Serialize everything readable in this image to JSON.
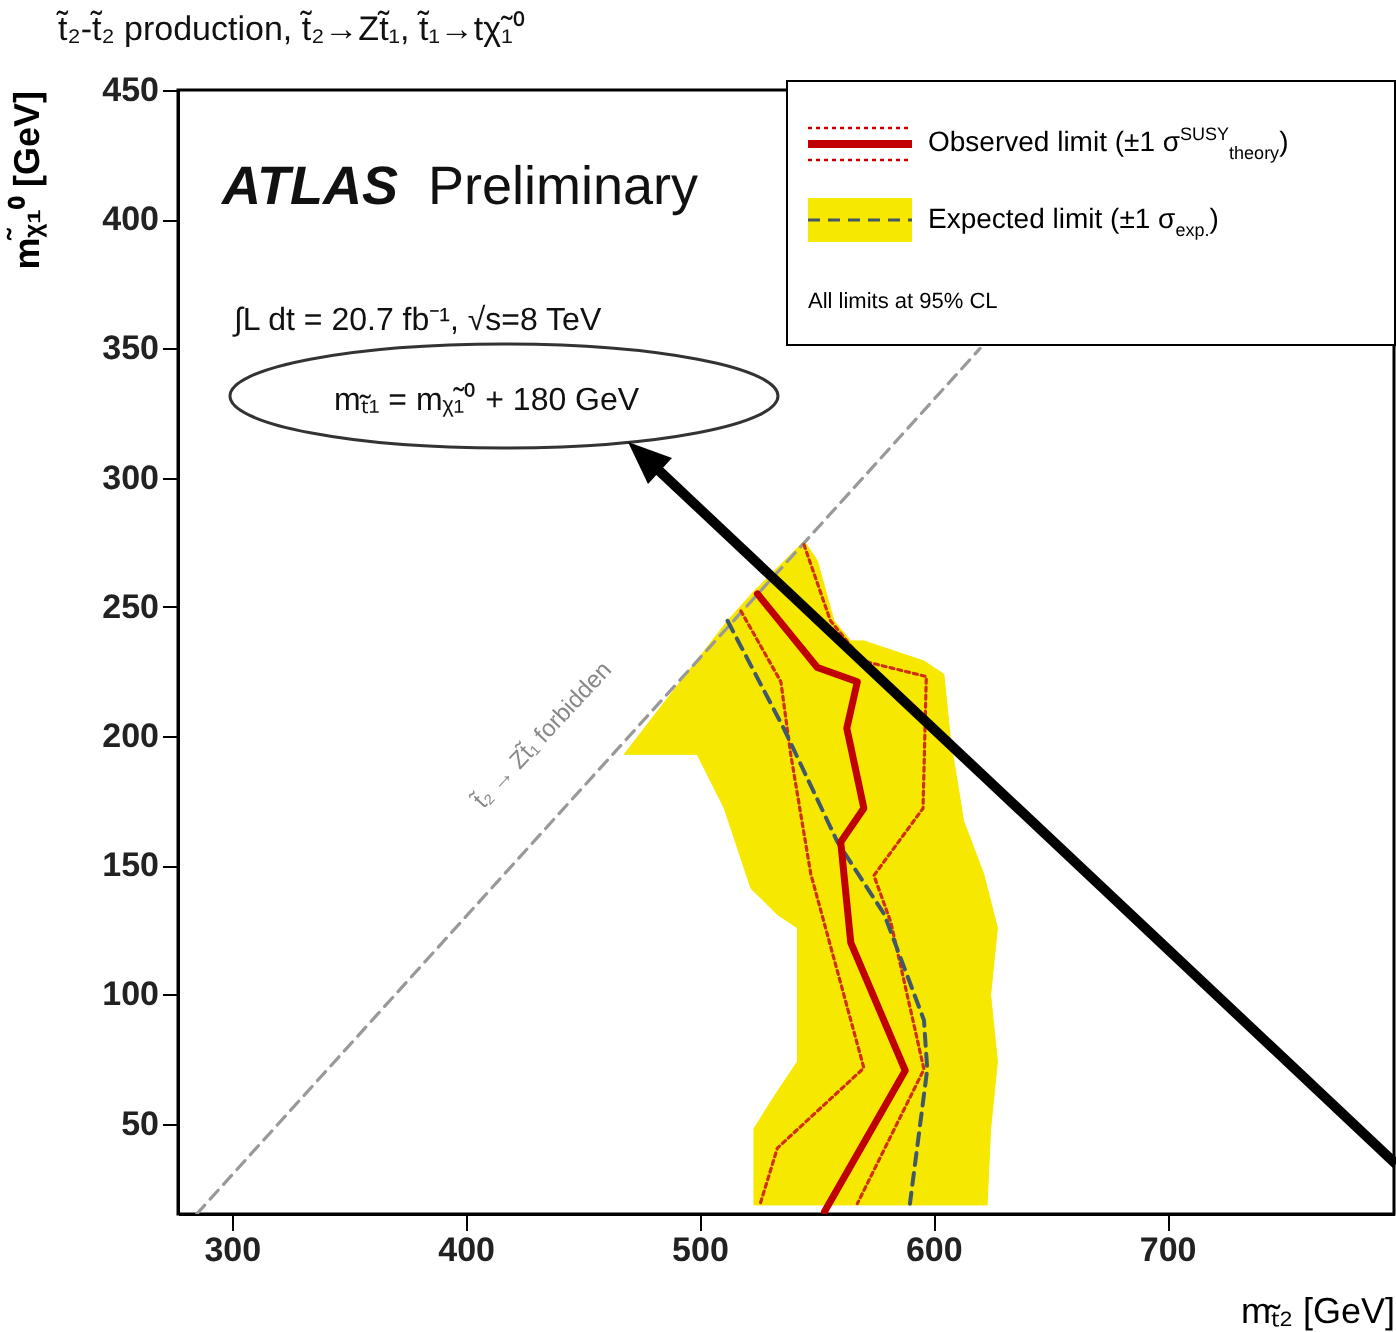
{
  "chart_data": {
    "type": "line",
    "title": "t̃₂-t̃₂ production, t̃₂→Zt̃₁, t̃₁→tχ̃₁⁰",
    "xlabel": "mₜ̃₂ [GeV]",
    "ylabel": "mᵪ̃₁⁰ [GeV]",
    "xlim": [
      277,
      797
    ],
    "ylim": [
      15,
      450
    ],
    "xticks": [
      300,
      400,
      500,
      600,
      700
    ],
    "yticks": [
      50,
      100,
      150,
      200,
      250,
      300,
      350,
      400,
      450
    ],
    "legend": "top right",
    "annotations": [
      "ATLAS",
      "Preliminary",
      "∫L dt = 20.7 fb⁻¹, √s=8 TeV",
      "mₜ̃₁ = mᵪ̃₁⁰ + 180 GeV",
      "t̃₂ → Zt̃₁ forbidden",
      "All limits at 95% CL"
    ],
    "series": [
      {
        "type": "area",
        "color": "#f7e800",
        "x": [
          544.7,
          550.4,
          557.5,
          564.7,
          570.4,
          596,
          604.5,
          607.4,
          613,
          621.6,
          627.4,
          624.5,
          627.4,
          624.5,
          623,
          523.3,
          523.3,
          530.5,
          541.9,
          541.9,
          533.3,
          522,
          516.2,
          510.5,
          499,
          467.8,
          512,
          524.8
        ],
        "values": [
          275.6,
          267.8,
          244.6,
          236.8,
          236.8,
          229,
          223.9,
          198,
          167,
          146.4,
          125.7,
          99.8,
          74,
          48,
          18.5,
          18.5,
          48,
          58.5,
          74,
          125.7,
          130.9,
          141,
          156.7,
          172.2,
          192.9,
          192.9,
          244.6,
          257.5
        ]
      },
      {
        "color": "#999999",
        "line_style": "dashed",
        "x": [
          285,
          620
        ],
        "values": [
          15,
          350
        ]
      },
      {
        "color": "#d03010",
        "line_style": "dotted",
        "x": [
          544.7,
          556,
          570,
          597,
          595.6,
          574.6,
          581.8,
          596,
          567.5
        ],
        "values": [
          274,
          244.6,
          229,
          223,
          172,
          146,
          128,
          71,
          19
        ]
      },
      {
        "color": "#d03010",
        "line_style": "dotted",
        "x": [
          517.7,
          534.8,
          539,
          547.6,
          570.3,
          533.3,
          526
        ],
        "values": [
          248.4,
          221,
          193,
          146.6,
          71.5,
          40.5,
          19
        ]
      },
      {
        "name": "Expected limit (±1 σ$_{exp.}$)",
        "color": "#40586a",
        "line_style": "dashed",
        "x": [
          512,
          536,
          559,
          579,
          596,
          597.4,
          590
        ],
        "values": [
          244.6,
          203,
          159,
          131,
          90,
          71,
          19
        ]
      },
      {
        "name": "Observed limit (±1 σ$^{SUSY}$$_{theory}$)",
        "color": "#c00000",
        "line_style": "solid",
        "x": [
          524.8,
          550.4,
          567.5,
          563,
          570.3,
          560.4,
          564.7,
          588,
          553.5
        ],
        "values": [
          255,
          226.5,
          221,
          203,
          172,
          159,
          120,
          70.5,
          16
        ]
      }
    ]
  }
}
